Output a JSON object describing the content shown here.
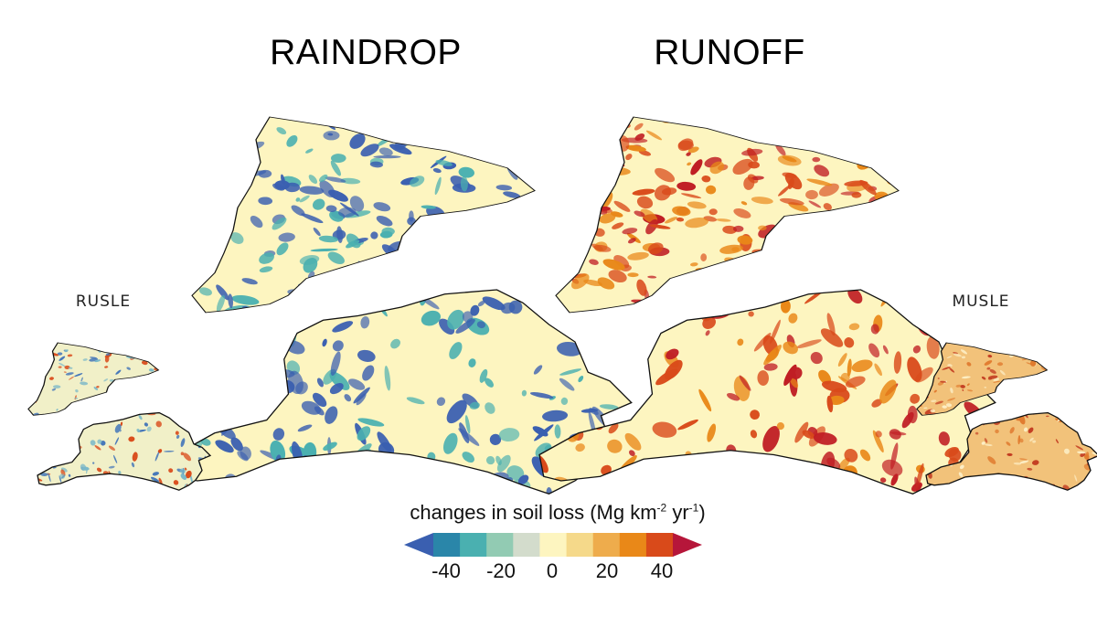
{
  "panels": {
    "raindrop": "RAINDROP",
    "runoff": "RUNOFF",
    "rusle": "RUSLE",
    "musle": "MUSLE"
  },
  "legend": {
    "title_main": "changes in soil loss (Mg km",
    "exp1": "-2",
    "title_mid": " yr",
    "exp2": "-1",
    "title_end": ")",
    "ticks": [
      "-40",
      "-20",
      "0",
      "20",
      "40"
    ],
    "colors": [
      "#3a5fb0",
      "#2a86a9",
      "#4ab0b0",
      "#92cbb3",
      "#d3dccc",
      "#fdf5c0",
      "#f5d98a",
      "#eeac4c",
      "#e98818",
      "#d94a1a",
      "#b6163a"
    ]
  },
  "map_palettes": {
    "raindrop": {
      "base": "#fdf5c0",
      "spot": [
        "#3a5fb0",
        "#3a5fb0",
        "#4ab0b0"
      ]
    },
    "runoff": {
      "base": "#fdf5c0",
      "spot": [
        "#c01e24",
        "#d94a1a",
        "#e98818"
      ]
    },
    "rusle": {
      "base": "#f1f0c8",
      "spot": [
        "#3a6fb8",
        "#7ab8c8",
        "#d94a1a"
      ]
    },
    "musle": {
      "base": "#f2c27a",
      "spot": [
        "#c23a20",
        "#e07a2e",
        "#fdf0c8"
      ]
    }
  }
}
